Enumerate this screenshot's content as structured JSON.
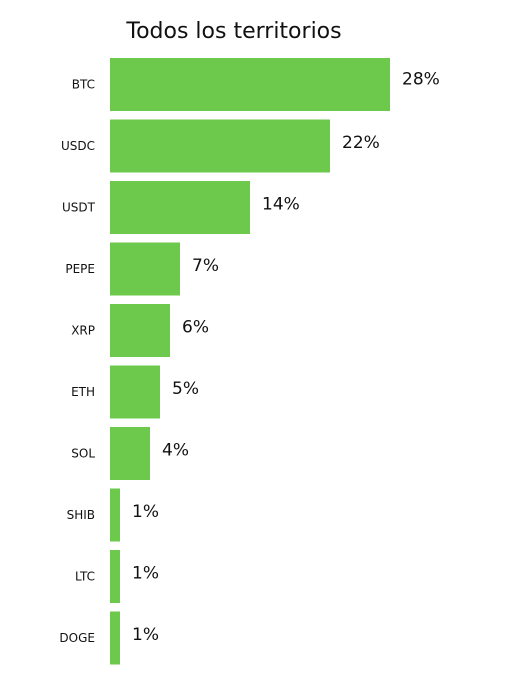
{
  "chart_data": {
    "type": "bar",
    "orientation": "horizontal",
    "title": "Todos los territorios",
    "categories": [
      "BTC",
      "USDC",
      "USDT",
      "PEPE",
      "XRP",
      "ETH",
      "SOL",
      "SHIB",
      "LTC",
      "DOGE"
    ],
    "values": [
      28,
      22,
      14,
      7,
      6,
      5,
      4,
      1,
      1,
      1
    ],
    "value_labels": [
      "28%",
      "22%",
      "14%",
      "7%",
      "6%",
      "5%",
      "4%",
      "1%",
      "1%",
      "1%"
    ],
    "unit": "%",
    "bar_color": "#6cc94b",
    "grid": false,
    "legend": "none"
  }
}
